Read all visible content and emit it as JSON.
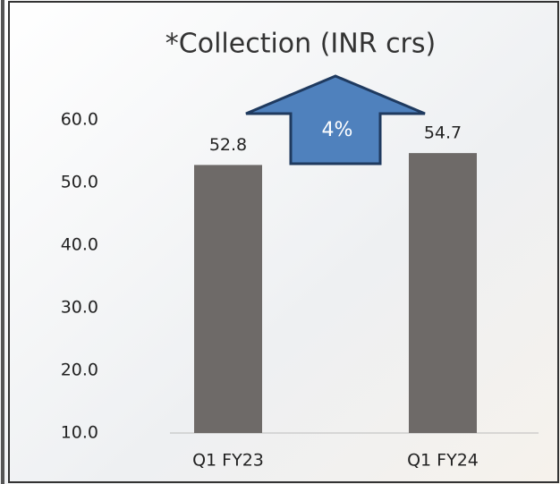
{
  "chart_data": {
    "type": "bar",
    "title": "*Collection (INR crs)",
    "categories": [
      "Q1 FY23",
      "Q1 FY24"
    ],
    "values": [
      52.8,
      54.7
    ],
    "color": "#6e6a68",
    "ylim": [
      10,
      60
    ],
    "yticks": [
      {
        "value": 10,
        "label": "10.0"
      },
      {
        "value": 20,
        "label": "20.0"
      },
      {
        "value": 30,
        "label": "30.0"
      },
      {
        "value": 40,
        "label": "40.0"
      },
      {
        "value": 50,
        "label": "50.0"
      },
      {
        "value": 60,
        "label": "60.0"
      }
    ],
    "annotation": "4%",
    "grid": false
  }
}
